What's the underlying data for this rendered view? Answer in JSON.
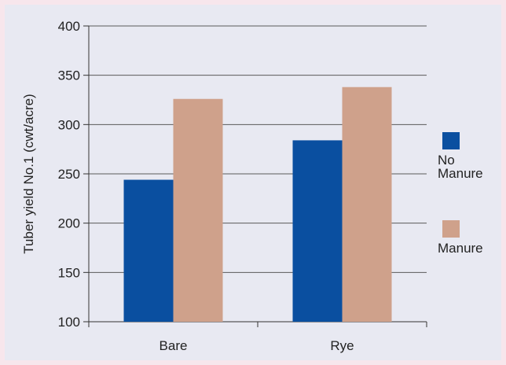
{
  "chart_data": {
    "type": "bar",
    "categories": [
      "Bare",
      "Rye"
    ],
    "series": [
      {
        "name": "No Manure",
        "values": [
          244,
          284
        ],
        "color": "#0a4fa0"
      },
      {
        "name": "Manure",
        "values": [
          326,
          338
        ],
        "color": "#cfa18b"
      }
    ],
    "title": "",
    "xlabel": "",
    "ylabel": "Tuber yield No.1 (cwt/acre)",
    "ylim": [
      100,
      400
    ],
    "yticks": [
      100,
      150,
      200,
      250,
      300,
      350,
      400
    ],
    "grid": true,
    "legend": "right",
    "legend_labels": [
      [
        "No",
        "Manure"
      ],
      [
        "Manure"
      ]
    ]
  }
}
